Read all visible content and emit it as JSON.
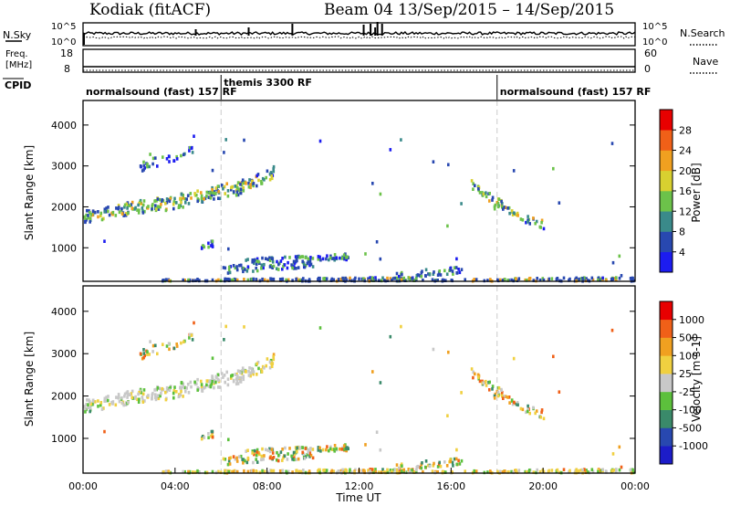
{
  "header": {
    "station": "Kodiak (fitACF)",
    "beam": "Beam 04",
    "date_range": "13/Sep/2015 – 14/Sep/2015"
  },
  "nsky_panel": {
    "left_label": "N.Sky",
    "right_label": "N.Search",
    "ytick_top": "10^5",
    "ytick_bottom": "10^0",
    "right_ytick_top": "10^5",
    "right_ytick_bottom": "10^0"
  },
  "freq_panel": {
    "left_label_line1": "Freq.",
    "left_label_line2": "[MHz]",
    "right_label": "Nave",
    "ytick_top": "18",
    "ytick_bottom": "8",
    "right_ytick_top": "60",
    "right_ytick_bottom": "0"
  },
  "cpid_panel": {
    "label": "CPID",
    "segments": [
      {
        "name": "normalsound (fast)",
        "rf": "157 RF",
        "start_hour": 0
      },
      {
        "name": "themis",
        "rf": "3300 RF",
        "start_hour": 6
      },
      {
        "name": "normalsound (fast)",
        "rf": "157 RF",
        "start_hour": 18
      }
    ]
  },
  "xaxis": {
    "label": "Time UT",
    "ticks": [
      "00:00",
      "04:00",
      "08:00",
      "12:00",
      "16:00",
      "20:00",
      "00:00"
    ],
    "range_hours": [
      0,
      24
    ]
  },
  "chart_data": [
    {
      "type": "heatmap",
      "name": "Power",
      "ylabel": "Slant Range [km]",
      "ylim": [
        180,
        4600
      ],
      "yticks": [
        1000,
        2000,
        3000,
        4000
      ],
      "xlim_hours": [
        0,
        24
      ],
      "colorbar": {
        "label": "Power [dB]",
        "ticks": [
          "4",
          "8",
          "12",
          "16",
          "20",
          "24",
          "28"
        ],
        "colors": [
          "#1c1cf0",
          "#2848b0",
          "#3a8a8a",
          "#6cc24a",
          "#d8d030",
          "#f0a020",
          "#f06018",
          "#e80000"
        ],
        "range": [
          0,
          30
        ]
      }
    },
    {
      "type": "heatmap",
      "name": "Velocity",
      "ylabel": "Slant Range [km]",
      "ylim": [
        180,
        4600
      ],
      "yticks": [
        1000,
        2000,
        3000,
        4000
      ],
      "xlim_hours": [
        0,
        24
      ],
      "colorbar": {
        "label": "Velocity [m s-1]",
        "ticks": [
          "1000",
          "500",
          "100",
          "25",
          "-25",
          "-100",
          "-500",
          "-1000"
        ],
        "colors": [
          "#1c1cc8",
          "#2848b0",
          "#3a8a6a",
          "#5cc03c",
          "#c8c8c8",
          "#f0d040",
          "#f0a020",
          "#f06018",
          "#e80000"
        ]
      }
    }
  ],
  "colors": {
    "frame": "#000000",
    "dashed_markers": "#cccccc"
  }
}
